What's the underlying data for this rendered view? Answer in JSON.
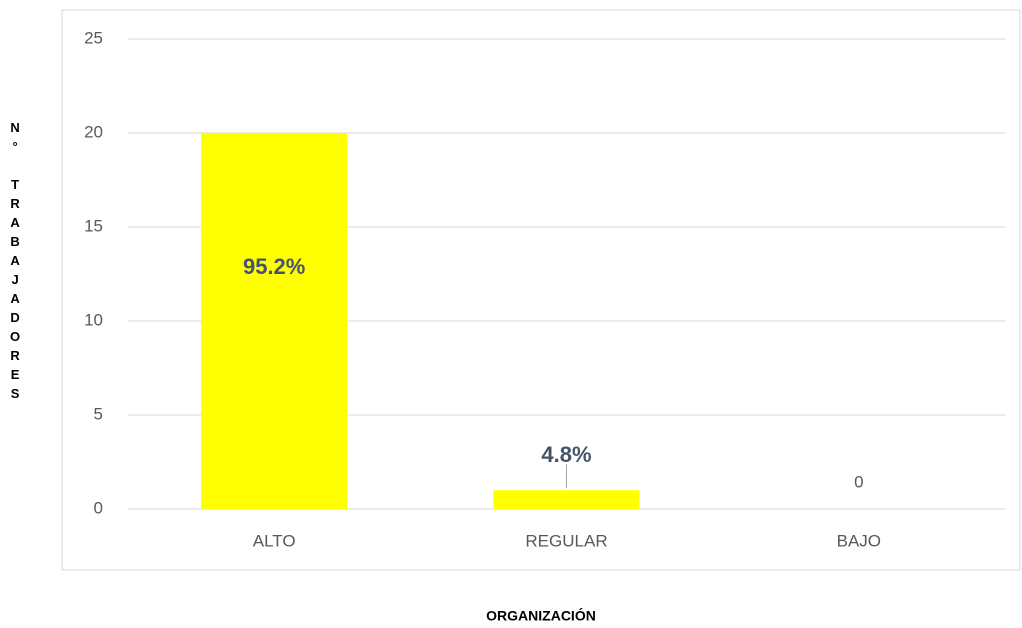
{
  "chart_data": {
    "type": "bar",
    "xlabel": "ORGANIZACIÓN",
    "ylabel": "N° TRABAJADORES",
    "categories": [
      "ALTO",
      "REGULAR",
      "BAJO"
    ],
    "values": [
      20,
      1,
      0
    ],
    "annotations": [
      "95.2%",
      "4.8%",
      "0"
    ],
    "color": "#ffff00",
    "ylim": [
      0,
      25
    ],
    "yticks": [
      0,
      5,
      10,
      15,
      20,
      25
    ],
    "grid": true
  }
}
